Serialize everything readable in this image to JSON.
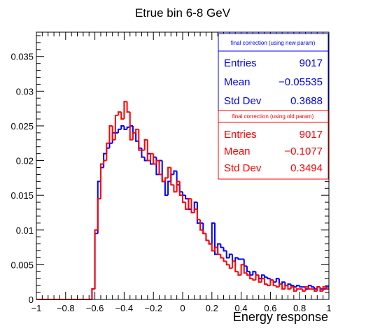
{
  "chart_data": {
    "type": "histogram",
    "title": "Etrue bin 6-8 GeV",
    "xlabel": "Energy response",
    "ylabel": "",
    "xlim": [
      -1,
      1
    ],
    "ylim": [
      0,
      0.0385
    ],
    "grid": false,
    "x_ticks": [
      -1,
      -0.8,
      -0.6,
      -0.4,
      -0.2,
      0,
      0.2,
      0.4,
      0.6,
      0.8,
      1
    ],
    "x_tick_labels": [
      "−1",
      "−0.8",
      "−0.6",
      "−0.4",
      "−0.2",
      "0",
      "0.2",
      "0.4",
      "0.6",
      "0.8",
      "1"
    ],
    "y_ticks": [
      0,
      0.005,
      0.01,
      0.015,
      0.02,
      0.025,
      0.03,
      0.035
    ],
    "y_tick_labels": [
      "0",
      "0.005",
      "0.01",
      "0.015",
      "0.02",
      "0.025",
      "0.03",
      "0.035"
    ],
    "bin_edges": {
      "start": -1,
      "width": 0.02,
      "count": 100
    },
    "series": [
      {
        "name": "final correction (using new param)",
        "color": "#0000ff",
        "stats": [
          {
            "label": "Entries",
            "value": "9017"
          },
          {
            "label": "Mean",
            "value": "−0.05535"
          },
          {
            "label": "Std Dev",
            "value": "0.3688"
          }
        ],
        "values": [
          0,
          0,
          0,
          0,
          0,
          0,
          0,
          0,
          0,
          0,
          0,
          0,
          0,
          0,
          0,
          0,
          0,
          0,
          0,
          0.0015,
          0.0095,
          0.017,
          0.019,
          0.021,
          0.0218,
          0.0225,
          0.024,
          0.024,
          0.0245,
          0.025,
          0.0245,
          0.0248,
          0.025,
          0.024,
          0.0228,
          0.0218,
          0.0205,
          0.02,
          0.021,
          0.0195,
          0.0205,
          0.018,
          0.02,
          0.017,
          0.015,
          0.017,
          0.018,
          0.0185,
          0.0165,
          0.0155,
          0.015,
          0.0145,
          0.013,
          0.0125,
          0.014,
          0.011,
          0.011,
          0.0095,
          0.0085,
          0.008,
          0.011,
          0.0065,
          0.008,
          0.0075,
          0.007,
          0.006,
          0.0065,
          0.0055,
          0.006,
          0.0058,
          0.0058,
          0.0048,
          0.004,
          0.0035,
          0.004,
          0.0035,
          0.003,
          0.0035,
          0.0032,
          0.003,
          0.0028,
          0.0025,
          0.003,
          0.0022,
          0.0025,
          0.002,
          0.0022,
          0.002,
          0.0018,
          0.002,
          0.0018,
          0.0018,
          0.0015,
          0.002,
          0.0018,
          0.0015,
          0.0018,
          0.0015,
          0.0015,
          0.0018
        ]
      },
      {
        "name": "final correction (using old param)",
        "color": "#ff0000",
        "stats": [
          {
            "label": "Entries",
            "value": "9017"
          },
          {
            "label": "Mean",
            "value": "−0.1077"
          },
          {
            "label": "Std Dev",
            "value": "0.3494"
          }
        ],
        "values": [
          0,
          0,
          0,
          0,
          0,
          0,
          0,
          0,
          0,
          0,
          0,
          0,
          0,
          0,
          0,
          0,
          0,
          0,
          0,
          0.0015,
          0.01,
          0.0145,
          0.0195,
          0.02,
          0.0225,
          0.025,
          0.023,
          0.0265,
          0.027,
          0.026,
          0.0285,
          0.027,
          0.023,
          0.024,
          0.0245,
          0.0215,
          0.0215,
          0.023,
          0.02,
          0.021,
          0.0195,
          0.02,
          0.018,
          0.017,
          0.0175,
          0.019,
          0.0165,
          0.0155,
          0.017,
          0.015,
          0.014,
          0.013,
          0.0145,
          0.0125,
          0.013,
          0.0115,
          0.01,
          0.0095,
          0.0085,
          0.008,
          0.007,
          0.0075,
          0.0065,
          0.006,
          0.0055,
          0.005,
          0.0045,
          0.0055,
          0.004,
          0.0035,
          0.005,
          0.0038,
          0.0035,
          0.003,
          0.0028,
          0.0035,
          0.0025,
          0.003,
          0.0022,
          0.002,
          0.0028,
          0.002,
          0.0018,
          0.0022,
          0.0015,
          0.002,
          0.0015,
          0.0018,
          0.0012,
          0.0015,
          0.0015,
          0.0012,
          0.0018,
          0.0015,
          0.0015,
          0.0012,
          0.0018,
          0.0012,
          0.0018,
          0.0015
        ]
      }
    ]
  }
}
